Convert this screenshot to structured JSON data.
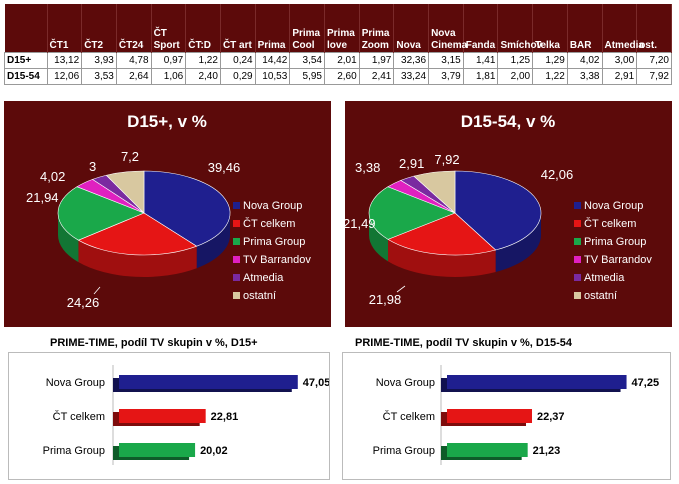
{
  "table": {
    "columns": [
      "",
      "ČT1",
      "ČT2",
      "ČT24",
      "ČT Sport",
      "ČT:D",
      "ČT art",
      "Prima",
      "Prima Cool",
      "Prima love",
      "Prima Zoom",
      "Nova",
      "Nova Cinema",
      "Fanda",
      "Smíchov",
      "Telka",
      "BAR",
      "Atmedia",
      "ost."
    ],
    "rows": [
      {
        "label": "D15+",
        "values": [
          "13,12",
          "3,93",
          "4,78",
          "0,97",
          "1,22",
          "0,24",
          "14,42",
          "3,54",
          "2,01",
          "1,97",
          "32,36",
          "3,15",
          "1,41",
          "1,25",
          "1,29",
          "4,02",
          "3,00",
          "7,20"
        ]
      },
      {
        "label": "D15-54",
        "values": [
          "12,06",
          "3,53",
          "2,64",
          "1,06",
          "2,40",
          "0,29",
          "10,53",
          "5,95",
          "2,60",
          "2,41",
          "33,24",
          "3,79",
          "1,81",
          "2,00",
          "1,22",
          "3,38",
          "2,91",
          "7,92"
        ]
      }
    ]
  },
  "colors": {
    "panel_bg": "#5c0a0a",
    "nova": "#1f1f8f",
    "ct": "#e51515",
    "prima": "#1aa84a",
    "barrandov": "#e020c0",
    "atmedia": "#7a2aa0",
    "ostatni": "#d8c8a0"
  },
  "chart_data": [
    {
      "type": "pie",
      "title": "D15+, v %",
      "categories": [
        "Nova Group",
        "ČT celkem",
        "Prima Group",
        "TV Barrandov",
        "Atmedia",
        "ostatní"
      ],
      "values": [
        39.46,
        24.26,
        21.94,
        4.02,
        3,
        7.2
      ],
      "data_labels": [
        "39,46",
        "24,26",
        "21,94",
        "4,02",
        "3",
        "7,2"
      ],
      "legend": "right"
    },
    {
      "type": "pie",
      "title": "D15-54, v %",
      "categories": [
        "Nova Group",
        "ČT celkem",
        "Prima Group",
        "TV Barrandov",
        "Atmedia",
        "ostatní"
      ],
      "values": [
        42.06,
        21.98,
        21.49,
        3.38,
        2.91,
        7.92
      ],
      "data_labels": [
        "42,06",
        "21,98",
        "21,49",
        "3,38",
        "2,91",
        "7,92"
      ],
      "legend": "right"
    },
    {
      "type": "bar",
      "orientation": "horizontal",
      "title": "PRIME-TIME, podíl TV skupin v %, D15+",
      "categories": [
        "Nova Group",
        "ČT celkem",
        "Prima Group"
      ],
      "values": [
        47.05,
        22.81,
        20.02
      ],
      "data_labels": [
        "47,05",
        "22,81",
        "20,02"
      ],
      "xlim": [
        0,
        50
      ]
    },
    {
      "type": "bar",
      "orientation": "horizontal",
      "title": "PRIME-TIME, podíl TV skupin v %, D15-54",
      "categories": [
        "Nova Group",
        "ČT celkem",
        "Prima Group"
      ],
      "values": [
        47.25,
        22.37,
        21.23
      ],
      "data_labels": [
        "47,25",
        "22,37",
        "21,23"
      ],
      "xlim": [
        0,
        50
      ]
    }
  ]
}
